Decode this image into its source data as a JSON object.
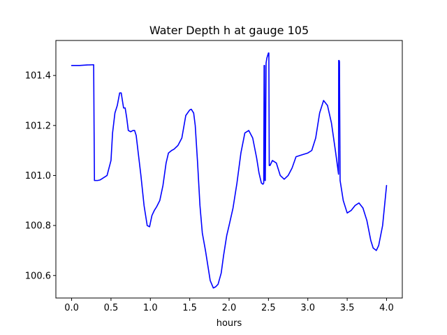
{
  "chart_data": {
    "type": "line",
    "title": "Water Depth h at gauge 105",
    "xlabel": "hours",
    "ylabel": "",
    "xlim": [
      -0.2,
      4.2
    ],
    "ylim": [
      100.51,
      101.54
    ],
    "xticks": [
      0.0,
      0.5,
      1.0,
      1.5,
      2.0,
      2.5,
      3.0,
      3.5,
      4.0
    ],
    "xtick_labels": [
      "0.0",
      "0.5",
      "1.0",
      "1.5",
      "2.0",
      "2.5",
      "3.0",
      "3.5",
      "4.0"
    ],
    "yticks": [
      100.6,
      100.8,
      101.0,
      101.2,
      101.4
    ],
    "ytick_labels": [
      "100.6",
      "100.8",
      "101.0",
      "101.2",
      "101.4"
    ],
    "grid": false,
    "legend": "none",
    "series": [
      {
        "color": "#0000ff",
        "x": [
          0.0,
          0.1,
          0.2,
          0.28,
          0.285,
          0.29,
          0.33,
          0.36,
          0.4,
          0.45,
          0.5,
          0.52,
          0.55,
          0.58,
          0.61,
          0.63,
          0.645,
          0.66,
          0.68,
          0.7,
          0.72,
          0.75,
          0.78,
          0.8,
          0.82,
          0.85,
          0.88,
          0.92,
          0.96,
          0.99,
          1.0,
          1.02,
          1.05,
          1.08,
          1.12,
          1.16,
          1.2,
          1.23,
          1.27,
          1.3,
          1.35,
          1.4,
          1.45,
          1.5,
          1.52,
          1.55,
          1.57,
          1.6,
          1.63,
          1.66,
          1.7,
          1.73,
          1.76,
          1.8,
          1.83,
          1.86,
          1.9,
          1.93,
          1.97,
          2.0,
          2.05,
          2.1,
          2.15,
          2.2,
          2.25,
          2.3,
          2.35,
          2.38,
          2.41,
          2.43,
          2.44,
          2.445,
          2.45,
          2.455,
          2.46,
          2.47,
          2.48,
          2.49,
          2.5,
          2.505,
          2.51,
          2.515,
          2.52,
          2.55,
          2.6,
          2.65,
          2.7,
          2.75,
          2.8,
          2.85,
          2.9,
          2.95,
          3.0,
          3.05,
          3.1,
          3.15,
          3.2,
          3.25,
          3.3,
          3.35,
          3.38,
          3.39,
          3.392,
          3.398,
          3.402,
          3.41,
          3.42,
          3.45,
          3.5,
          3.55,
          3.6,
          3.65,
          3.7,
          3.75,
          3.8,
          3.83,
          3.87,
          3.9,
          3.95,
          4.0
        ],
        "y": [
          101.44,
          101.44,
          101.442,
          101.443,
          101.2,
          100.98,
          100.98,
          100.982,
          100.99,
          101.0,
          101.06,
          101.17,
          101.25,
          101.28,
          101.33,
          101.33,
          101.3,
          101.27,
          101.27,
          101.23,
          101.18,
          101.175,
          101.18,
          101.18,
          101.16,
          101.08,
          101.0,
          100.88,
          100.8,
          100.795,
          100.81,
          100.84,
          100.86,
          100.875,
          100.9,
          100.96,
          101.05,
          101.09,
          101.1,
          101.105,
          101.12,
          101.15,
          101.24,
          101.262,
          101.265,
          101.25,
          101.2,
          101.05,
          100.88,
          100.77,
          100.7,
          100.64,
          100.58,
          100.55,
          100.555,
          100.565,
          100.61,
          100.68,
          100.76,
          100.8,
          100.87,
          100.97,
          101.09,
          101.17,
          101.18,
          101.15,
          101.07,
          101.01,
          100.97,
          100.965,
          100.97,
          101.44,
          101.44,
          100.98,
          100.98,
          101.45,
          101.47,
          101.48,
          101.49,
          101.49,
          101.04,
          101.04,
          101.04,
          101.06,
          101.05,
          101.0,
          100.985,
          101.0,
          101.03,
          101.075,
          101.08,
          101.085,
          101.09,
          101.1,
          101.15,
          101.25,
          101.3,
          101.28,
          101.21,
          101.1,
          101.03,
          101.005,
          101.46,
          101.46,
          101.455,
          100.98,
          100.96,
          100.9,
          100.85,
          100.86,
          100.88,
          100.89,
          100.87,
          100.82,
          100.74,
          100.71,
          100.7,
          100.72,
          100.8,
          100.96
        ]
      }
    ]
  }
}
